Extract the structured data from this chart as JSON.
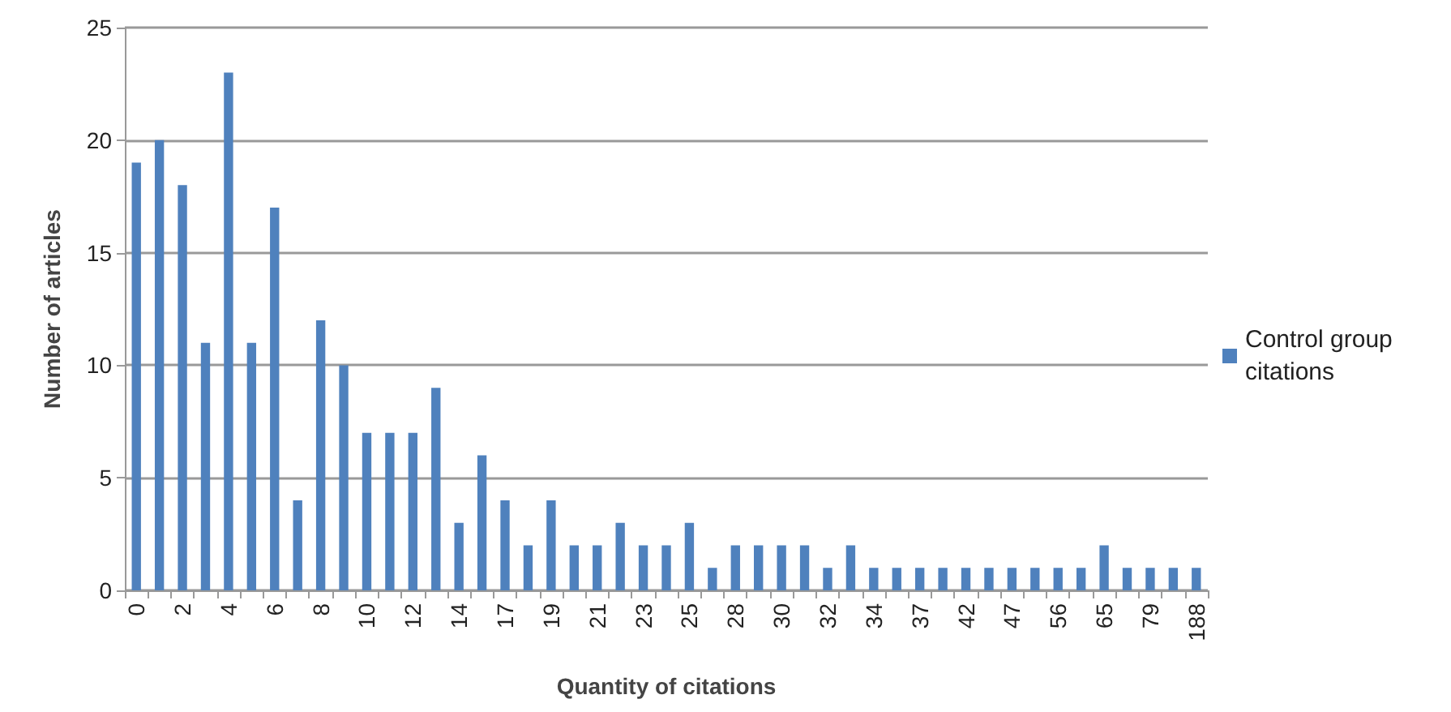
{
  "chart_data": {
    "type": "bar",
    "xlabel": "Quantity of citations",
    "ylabel": "Number of articles",
    "categories": [
      "0",
      null,
      "2",
      null,
      "4",
      null,
      "6",
      null,
      "8",
      null,
      "10",
      null,
      "12",
      null,
      "14",
      null,
      "17",
      null,
      "19",
      null,
      "21",
      null,
      "23",
      null,
      "25",
      null,
      "28",
      null,
      "30",
      null,
      "32",
      null,
      "34",
      null,
      "37",
      null,
      "42",
      null,
      "47",
      null,
      "56",
      null,
      "65",
      null,
      "79",
      null,
      "188"
    ],
    "series": [
      {
        "name": "Control group citations",
        "color": "#4f81bd",
        "values": [
          19,
          20,
          18,
          11,
          23,
          11,
          17,
          4,
          12,
          10,
          7,
          7,
          7,
          9,
          3,
          6,
          4,
          2,
          4,
          2,
          2,
          3,
          2,
          2,
          3,
          1,
          2,
          2,
          2,
          2,
          1,
          2,
          1,
          1,
          1,
          1,
          1,
          1,
          1,
          1,
          1,
          1,
          2,
          1,
          1,
          1,
          1
        ]
      }
    ],
    "ylim": [
      0,
      25
    ],
    "yticks": [
      0,
      5,
      10,
      15,
      20,
      25
    ],
    "grid": "y",
    "legend": "right"
  }
}
